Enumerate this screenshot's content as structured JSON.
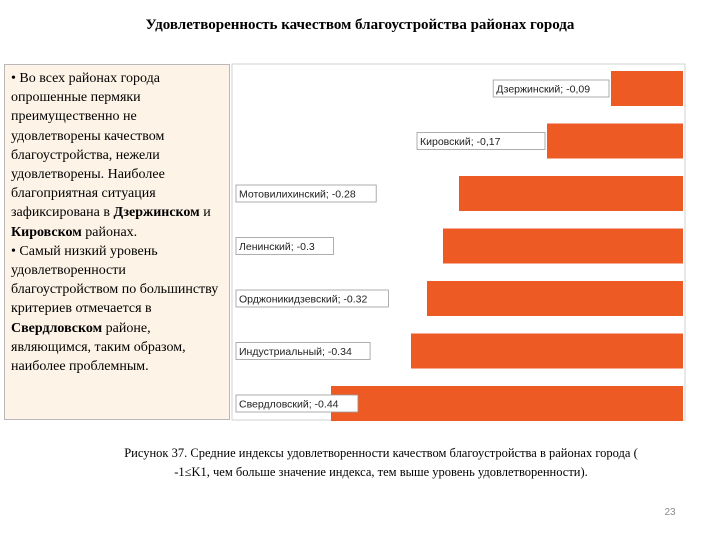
{
  "title": "Удовлетворенность качеством благоустройства районах города",
  "text_box": {
    "p1": {
      "before": "• Во всех районах города опрошенные пермяки преимущественно не удовлетворены качеством благоустройства, нежели удовлетворены. Наиболее благоприятная ситуация зафиксирована в ",
      "bold1": "Дзержинском",
      "middle": " и ",
      "bold2": "Кировском",
      "after": " районах."
    },
    "p2": {
      "before": "• Самый низкий уровень удовлетворенности благоустройством по большинству критериев отмечается в ",
      "bold": "Свердловском",
      "after": " районе, являющимся, таким образом, наиболее проблемным."
    }
  },
  "chart_data": {
    "type": "bar",
    "orientation": "horizontal",
    "categories": [
      "Дзержинский",
      "Кировский",
      "Мотовилихинский",
      "Ленинский",
      "Орджоникидзевский",
      "Индустриальный",
      "Свердловский"
    ],
    "values": [
      -0.09,
      -0.17,
      -0.28,
      -0.3,
      -0.32,
      -0.34,
      -0.44
    ],
    "data_labels": [
      "Дзержинский; -0,09",
      "Кировский;     -0,17",
      "Мотовилихинский; -0.28",
      "Ленинский; -0.3",
      "Орджоникидзевский; -0.32",
      "Индустриальный; -0.34",
      "Свердловский; -0.44"
    ],
    "xlim": [
      -0.5,
      0
    ],
    "bar_color": "#ee5a24",
    "grid": false
  },
  "caption": {
    "line1": "Рисунок 37. Средние индексы удовлетворенности качеством благоустройства в районах города  (",
    "line2": "-1≤K1, чем больше значение индекса, тем выше уровень удовлетворенности)."
  },
  "page_number": "23"
}
